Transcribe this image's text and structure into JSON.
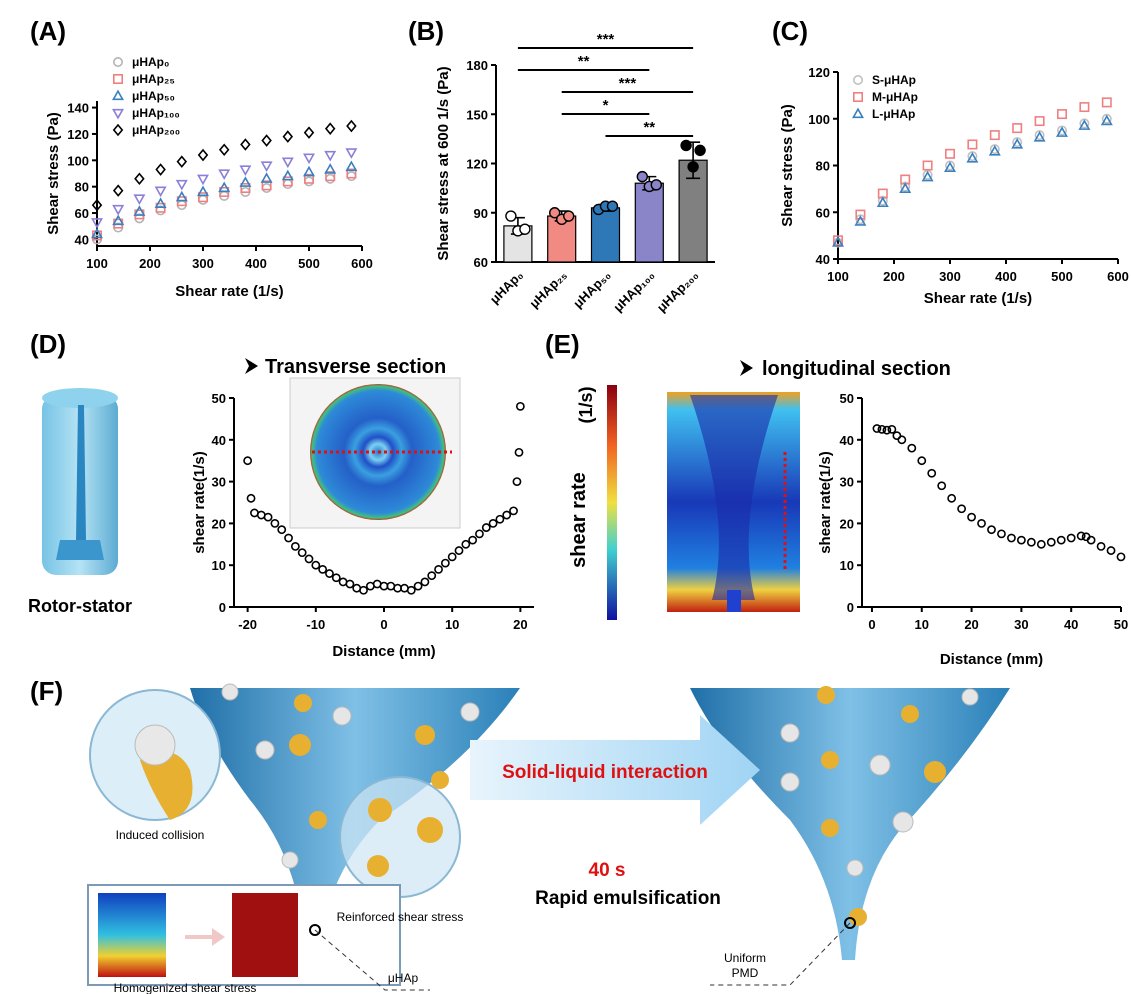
{
  "chart_data": [
    {
      "panel": "(A)",
      "type": "scatter",
      "xlabel": "Shear rate (1/s)",
      "ylabel": "Shear stress (Pa)",
      "x": [
        100,
        140,
        180,
        220,
        260,
        300,
        340,
        380,
        420,
        460,
        500,
        540,
        580
      ],
      "series": [
        {
          "name": "μHAp₀",
          "color": "#b4b4b4",
          "marker": "circle",
          "values": [
            40,
            49,
            56,
            62,
            66,
            70,
            73,
            76,
            79,
            82,
            84,
            86,
            88
          ]
        },
        {
          "name": "μHAp₂₅",
          "color": "#f08080",
          "marker": "square",
          "values": [
            43,
            52,
            59,
            64,
            69,
            72,
            76,
            79,
            81,
            84,
            86,
            88,
            90
          ]
        },
        {
          "name": "μHAp₅₀",
          "color": "#3a80c0",
          "marker": "triangle",
          "values": [
            44,
            54,
            61,
            67,
            72,
            76,
            79,
            83,
            86,
            88,
            91,
            93,
            95
          ]
        },
        {
          "name": "μHAp₁₀₀",
          "color": "#8a80d8",
          "marker": "triangle-down",
          "values": [
            53,
            63,
            71,
            77,
            82,
            86,
            90,
            93,
            96,
            99,
            102,
            104,
            106
          ]
        },
        {
          "name": "μHAp₂₀₀",
          "color": "#000000",
          "marker": "diamond",
          "values": [
            66,
            77,
            86,
            93,
            99,
            104,
            108,
            112,
            115,
            118,
            121,
            124,
            126
          ]
        }
      ],
      "xlim": [
        100,
        600
      ],
      "xticks": [
        100,
        200,
        300,
        400,
        500,
        600
      ],
      "ylim": [
        35,
        145
      ],
      "yticks": [
        40,
        60,
        80,
        100,
        120,
        140
      ],
      "legend": "upper left"
    },
    {
      "panel": "(B)",
      "type": "bar",
      "ylabel": "Shear stress at 600 1/s (Pa)",
      "categories": [
        "μHAp₀",
        "μHAp₂₅",
        "μHAp₅₀",
        "μHAp₁₀₀",
        "μHAp₂₀₀"
      ],
      "values": [
        82,
        88,
        93,
        108,
        122
      ],
      "errors": [
        5,
        3,
        2,
        4,
        11
      ],
      "points": [
        [
          88,
          79,
          80
        ],
        [
          90,
          86,
          88
        ],
        [
          92,
          94,
          94
        ],
        [
          112,
          106,
          107
        ],
        [
          131,
          118,
          128
        ]
      ],
      "colors": [
        "#e4e4e4",
        "#f28a84",
        "#2f78b8",
        "#8a84c8",
        "#808080"
      ],
      "point_colors": [
        "#ffffff",
        "#f28a84",
        "#2f78b8",
        "#8a84c8",
        "#000000"
      ],
      "ylim": [
        60,
        180
      ],
      "yticks": [
        60,
        90,
        120,
        150,
        180
      ],
      "significance": [
        {
          "from": 0,
          "to": 4,
          "label": "***"
        },
        {
          "from": 0,
          "to": 3,
          "label": "**"
        },
        {
          "from": 1,
          "to": 4,
          "label": "***"
        },
        {
          "from": 1,
          "to": 3,
          "label": "*"
        },
        {
          "from": 2,
          "to": 4,
          "label": "**"
        }
      ]
    },
    {
      "panel": "(C)",
      "type": "scatter",
      "xlabel": "Shear rate (1/s)",
      "ylabel": "Shear stress (Pa)",
      "x": [
        100,
        140,
        180,
        220,
        260,
        300,
        340,
        380,
        420,
        460,
        500,
        540,
        580
      ],
      "series": [
        {
          "name": "S-μHAp",
          "color": "#c0c0c0",
          "marker": "circle",
          "values": [
            47,
            57,
            65,
            71,
            76,
            80,
            84,
            87,
            90,
            93,
            95,
            98,
            100
          ]
        },
        {
          "name": "M-μHAp",
          "color": "#f08080",
          "marker": "square",
          "values": [
            48,
            59,
            68,
            74,
            80,
            85,
            89,
            93,
            96,
            99,
            102,
            105,
            107
          ]
        },
        {
          "name": "L-μHAp",
          "color": "#3a80c0",
          "marker": "triangle",
          "values": [
            47,
            56,
            64,
            70,
            75,
            79,
            83,
            86,
            89,
            92,
            94,
            97,
            99
          ]
        }
      ],
      "xlim": [
        100,
        600
      ],
      "xticks": [
        100,
        200,
        300,
        400,
        500,
        600
      ],
      "ylim": [
        40,
        120
      ],
      "yticks": [
        40,
        60,
        80,
        100,
        120
      ],
      "legend": "upper left"
    },
    {
      "panel": "(D)",
      "type": "scatter",
      "title": "Transverse section",
      "caption": "Rotor-stator",
      "xlabel": "Distance (mm)",
      "ylabel": "shear rate(1/s)",
      "color": "#000000",
      "marker": "circle",
      "x": [
        -20,
        -19.5,
        -19,
        -18,
        -17,
        -16,
        -15,
        -14,
        -13,
        -12,
        -11,
        -10,
        -9,
        -8,
        -7,
        -6,
        -5,
        -4,
        -3,
        -2,
        -1,
        0,
        1,
        2,
        3,
        4,
        5,
        6,
        7,
        8,
        9,
        10,
        11,
        12,
        13,
        14,
        15,
        16,
        17,
        18,
        19,
        19.5,
        19.8,
        20
      ],
      "values": [
        35,
        26,
        22.5,
        22,
        21.5,
        20,
        18.5,
        16.5,
        14.5,
        13,
        11.5,
        10,
        9,
        8,
        7,
        6,
        5.5,
        4.5,
        4,
        5,
        5.5,
        5,
        5,
        4.5,
        4.5,
        4,
        5,
        6,
        7.5,
        9,
        10.5,
        12,
        13.5,
        15,
        16,
        17.5,
        19,
        20,
        21,
        22,
        23,
        30,
        37,
        48
      ],
      "xlim": [
        -22,
        22
      ],
      "xticks": [
        -20,
        -10,
        0,
        10,
        20
      ],
      "ylim": [
        0,
        50
      ],
      "yticks": [
        0,
        10,
        20,
        30,
        40,
        50
      ]
    },
    {
      "panel": "(E)",
      "type": "scatter",
      "title": "longitudinal section",
      "heatmap_label": "shear rate",
      "heatmap_unit": "(1/s)",
      "xlabel": "Distance (mm)",
      "ylabel": "shear rate(1/s)",
      "color": "#000000",
      "marker": "circle",
      "x": [
        1,
        2,
        3,
        4,
        5,
        6,
        8,
        10,
        12,
        14,
        16,
        18,
        20,
        22,
        24,
        26,
        28,
        30,
        32,
        34,
        36,
        38,
        40,
        42,
        43,
        44,
        46,
        48,
        50
      ],
      "values": [
        42.7,
        42.5,
        42.3,
        42.5,
        41,
        40,
        38,
        35,
        32,
        29,
        26,
        23.5,
        21.5,
        20,
        18.5,
        17.5,
        16.5,
        16,
        15.5,
        15,
        15.5,
        16,
        16.5,
        17,
        16.8,
        16,
        14.5,
        13.5,
        12
      ],
      "xlim": [
        -2,
        50
      ],
      "xticks": [
        0,
        10,
        20,
        30,
        40,
        50
      ],
      "ylim": [
        0,
        50
      ],
      "yticks": [
        0,
        10,
        20,
        30,
        40,
        50
      ]
    }
  ],
  "illustration": {
    "panel": "(F)",
    "arrow_label": "Solid-liquid interaction",
    "time": "40 s",
    "process": "Rapid emulsification",
    "inset_1": "Induced collision",
    "inset_2": "Reinforced shear stress",
    "inset_3": "Homogenized shear stress",
    "particle": "μHAp",
    "product": [
      "Uniform",
      "PMD"
    ]
  }
}
